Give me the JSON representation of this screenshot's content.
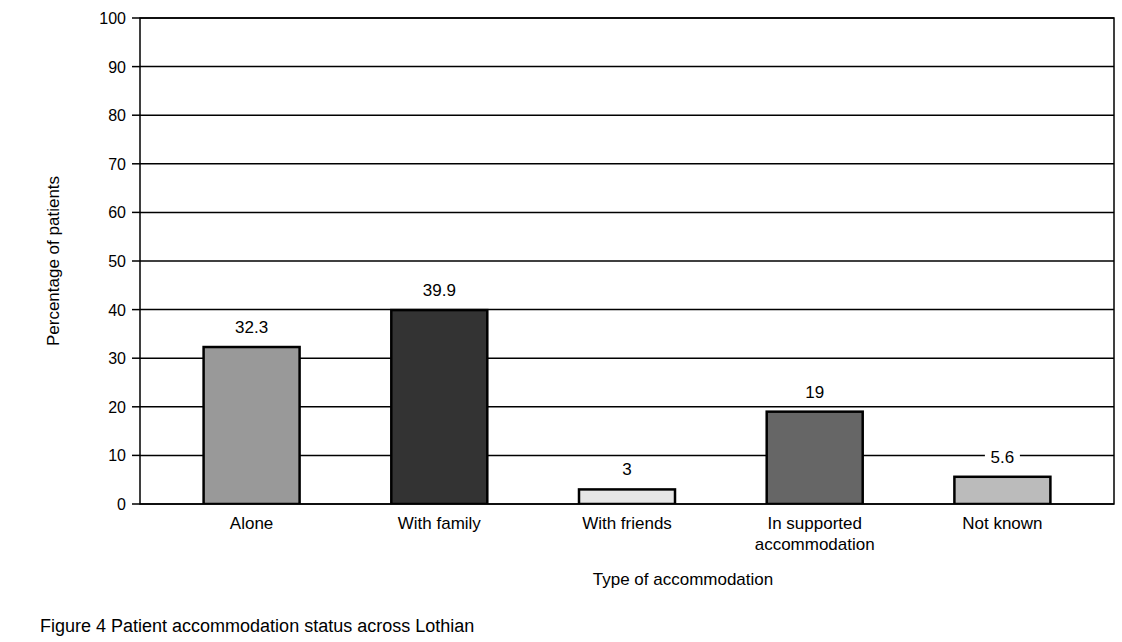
{
  "chart_data": {
    "type": "bar",
    "title": "Figure 4 Patient accommodation status across Lothian",
    "x_label": "Type of accommodation",
    "y_label": "Percentage of patients",
    "categories": [
      "Alone",
      "With family",
      "With friends",
      "In supported accommodation",
      "Not known"
    ],
    "values": [
      32.3,
      39.9,
      3,
      19,
      5.6
    ],
    "colors": [
      "#999999",
      "#333333",
      "#e6e6e6",
      "#666666",
      "#bbbbbb"
    ],
    "ylim": [
      0,
      100
    ],
    "yticks": [
      0,
      10,
      20,
      30,
      40,
      50,
      60,
      70,
      80,
      90,
      100
    ],
    "grid": true,
    "data_labels": true
  }
}
